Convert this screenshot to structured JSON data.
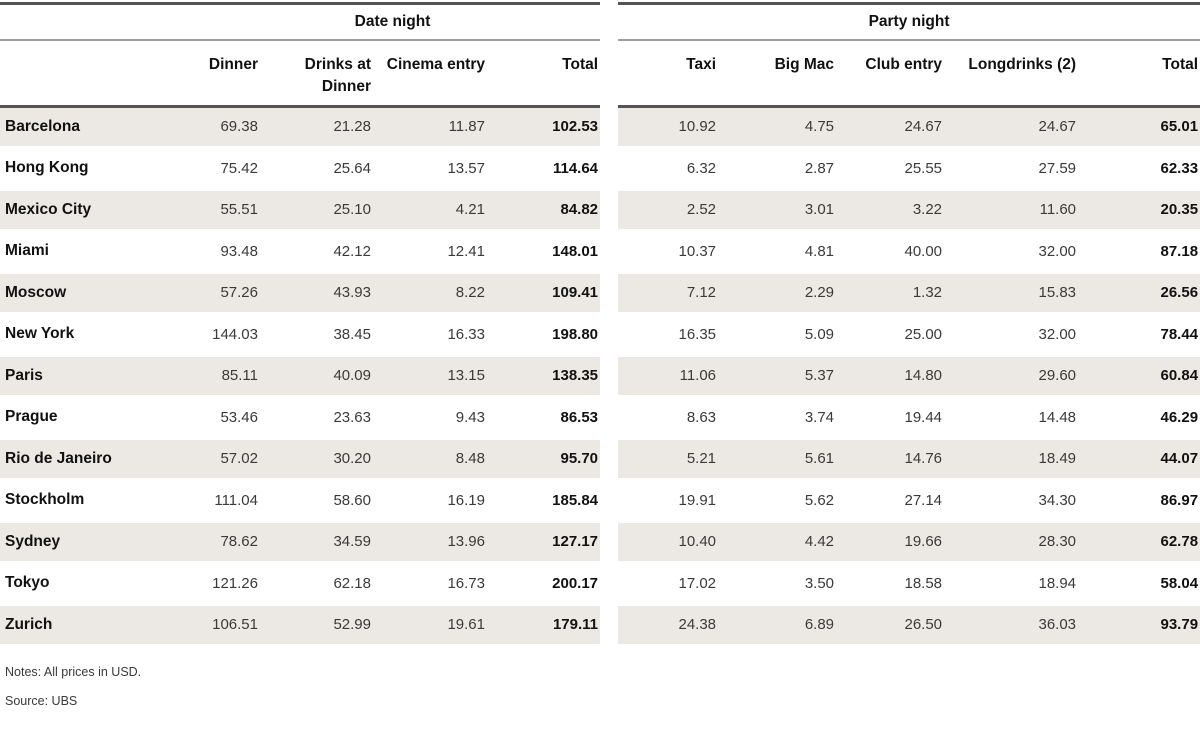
{
  "chart_data": {
    "type": "table",
    "rows": [
      "Barcelona",
      "Hong Kong",
      "Mexico City",
      "Miami",
      "Moscow",
      "New York",
      "Paris",
      "Prague",
      "Rio de Janeiro",
      "Stockholm",
      "Sydney",
      "Tokyo",
      "Zurich"
    ],
    "sections": [
      {
        "title": "Date night",
        "columns": [
          "Dinner",
          "Drinks at Dinner",
          "Cinema entry",
          "Total"
        ],
        "values": [
          [
            "69.38",
            "21.28",
            "11.87",
            "102.53"
          ],
          [
            "75.42",
            "25.64",
            "13.57",
            "114.64"
          ],
          [
            "55.51",
            "25.10",
            "4.21",
            "84.82"
          ],
          [
            "93.48",
            "42.12",
            "12.41",
            "148.01"
          ],
          [
            "57.26",
            "43.93",
            "8.22",
            "109.41"
          ],
          [
            "144.03",
            "38.45",
            "16.33",
            "198.80"
          ],
          [
            "85.11",
            "40.09",
            "13.15",
            "138.35"
          ],
          [
            "53.46",
            "23.63",
            "9.43",
            "86.53"
          ],
          [
            "57.02",
            "30.20",
            "8.48",
            "95.70"
          ],
          [
            "111.04",
            "58.60",
            "16.19",
            "185.84"
          ],
          [
            "78.62",
            "34.59",
            "13.96",
            "127.17"
          ],
          [
            "121.26",
            "62.18",
            "16.73",
            "200.17"
          ],
          [
            "106.51",
            "52.99",
            "19.61",
            "179.11"
          ]
        ]
      },
      {
        "title": "Party night",
        "columns": [
          "Taxi",
          "Big Mac",
          "Club entry",
          "Longdrinks (2)",
          "Total"
        ],
        "values": [
          [
            "10.92",
            "4.75",
            "24.67",
            "24.67",
            "65.01"
          ],
          [
            "6.32",
            "2.87",
            "25.55",
            "27.59",
            "62.33"
          ],
          [
            "2.52",
            "3.01",
            "3.22",
            "11.60",
            "20.35"
          ],
          [
            "10.37",
            "4.81",
            "40.00",
            "32.00",
            "87.18"
          ],
          [
            "7.12",
            "2.29",
            "1.32",
            "15.83",
            "26.56"
          ],
          [
            "16.35",
            "5.09",
            "25.00",
            "32.00",
            "78.44"
          ],
          [
            "11.06",
            "5.37",
            "14.80",
            "29.60",
            "60.84"
          ],
          [
            "8.63",
            "3.74",
            "19.44",
            "14.48",
            "46.29"
          ],
          [
            "5.21",
            "5.61",
            "14.76",
            "18.49",
            "44.07"
          ],
          [
            "19.91",
            "5.62",
            "27.14",
            "34.30",
            "86.97"
          ],
          [
            "10.40",
            "4.42",
            "19.66",
            "28.30",
            "62.78"
          ],
          [
            "17.02",
            "3.50",
            "18.58",
            "18.94",
            "58.04"
          ],
          [
            "24.38",
            "6.89",
            "26.50",
            "36.03",
            "93.79"
          ]
        ]
      }
    ],
    "layout_hints": {
      "zebra_striping": "odd rows shaded",
      "totals_bold": true,
      "numeric_alignment": "right"
    }
  },
  "footer": {
    "notes": "Notes: All prices in USD.",
    "source": "Source: UBS"
  },
  "colors": {
    "stripe": "#ECE9E5",
    "rule_dark": "#545454",
    "rule_light": "#9E9E9E",
    "text_strong": "#111111",
    "text_number": "#3A3A3A"
  }
}
